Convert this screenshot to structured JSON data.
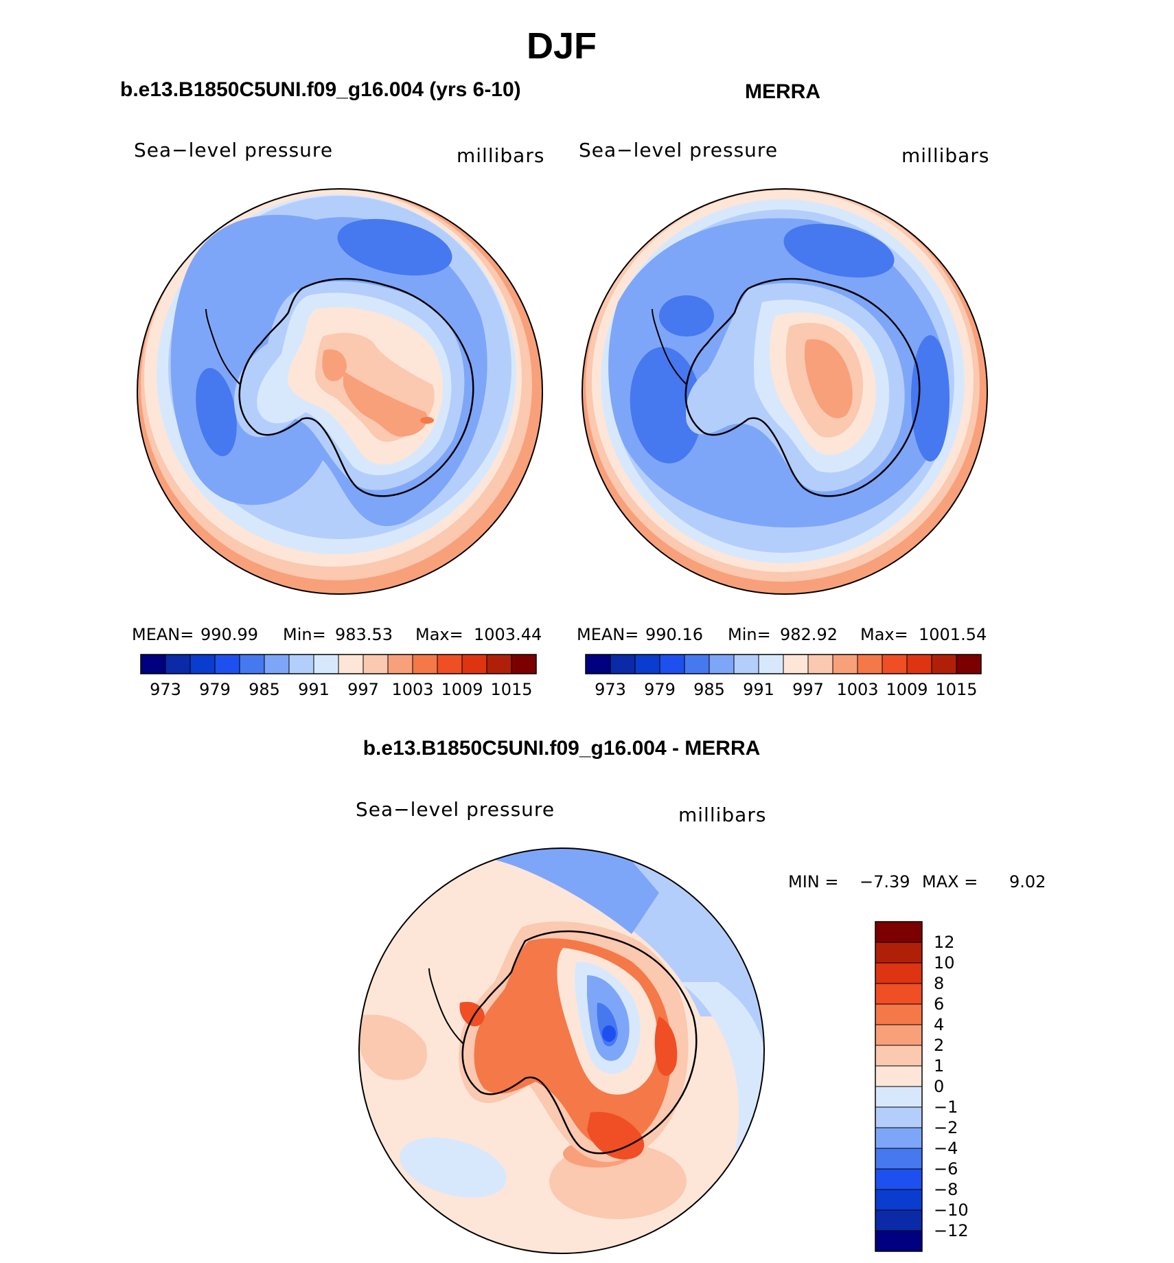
{
  "figure_title": "DJF",
  "colors": {
    "base": [
      "#000080",
      "#0a2aa8",
      "#0a3cd0",
      "#1e50f0",
      "#4678f0",
      "#7ea6f8",
      "#b4cefc",
      "#d8e8fc",
      "#fde6d8",
      "#fbc8b0",
      "#f8a07a",
      "#f47848",
      "#f04e24",
      "#de3412",
      "#b02008",
      "#7c0000"
    ],
    "diff": [
      "#7c0000",
      "#b02008",
      "#de3412",
      "#f04e24",
      "#f47848",
      "#f8a07a",
      "#fbc8b0",
      "#fde6d8",
      "#d8e8fc",
      "#b4cefc",
      "#7ea6f8",
      "#4678f0",
      "#1e50f0",
      "#0a3cd0",
      "#0a2aa8",
      "#000080"
    ]
  },
  "panels": [
    {
      "id": "model",
      "title": "b.e13.B1850C5UNI.f09_g16.004 (yrs 6-10)",
      "variable_label": "Sea−level pressure",
      "units_label": "millibars",
      "stats": {
        "mean_label": "MEAN=",
        "mean": "990.99",
        "min_label": "Min=",
        "min": "983.53",
        "max_label": "Max=",
        "max": "1003.44"
      },
      "colorbar_ticks": [
        "973",
        "979",
        "985",
        "991",
        "997",
        "1003",
        "1009",
        "1015"
      ]
    },
    {
      "id": "obs",
      "title": "MERRA",
      "variable_label": "Sea−level pressure",
      "units_label": "millibars",
      "stats": {
        "mean_label": "MEAN=",
        "mean": "990.16",
        "min_label": "Min=",
        "min": "982.92",
        "max_label": "Max=",
        "max": "1001.54"
      },
      "colorbar_ticks": [
        "973",
        "979",
        "985",
        "991",
        "997",
        "1003",
        "1009",
        "1015"
      ]
    }
  ],
  "difference": {
    "title": "b.e13.B1850C5UNI.f09_g16.004 - MERRA",
    "variable_label": "Sea−level pressure",
    "units_label": "millibars",
    "minmax": {
      "min_label": "MIN =",
      "min": "−7.39",
      "max_label": "MAX =",
      "max": "9.02"
    },
    "colorbar_ticks": [
      "12",
      "10",
      "8",
      "6",
      "4",
      "2",
      "1",
      "0",
      "−1",
      "−2",
      "−4",
      "−6",
      "−8",
      "−10",
      "−12"
    ]
  }
}
